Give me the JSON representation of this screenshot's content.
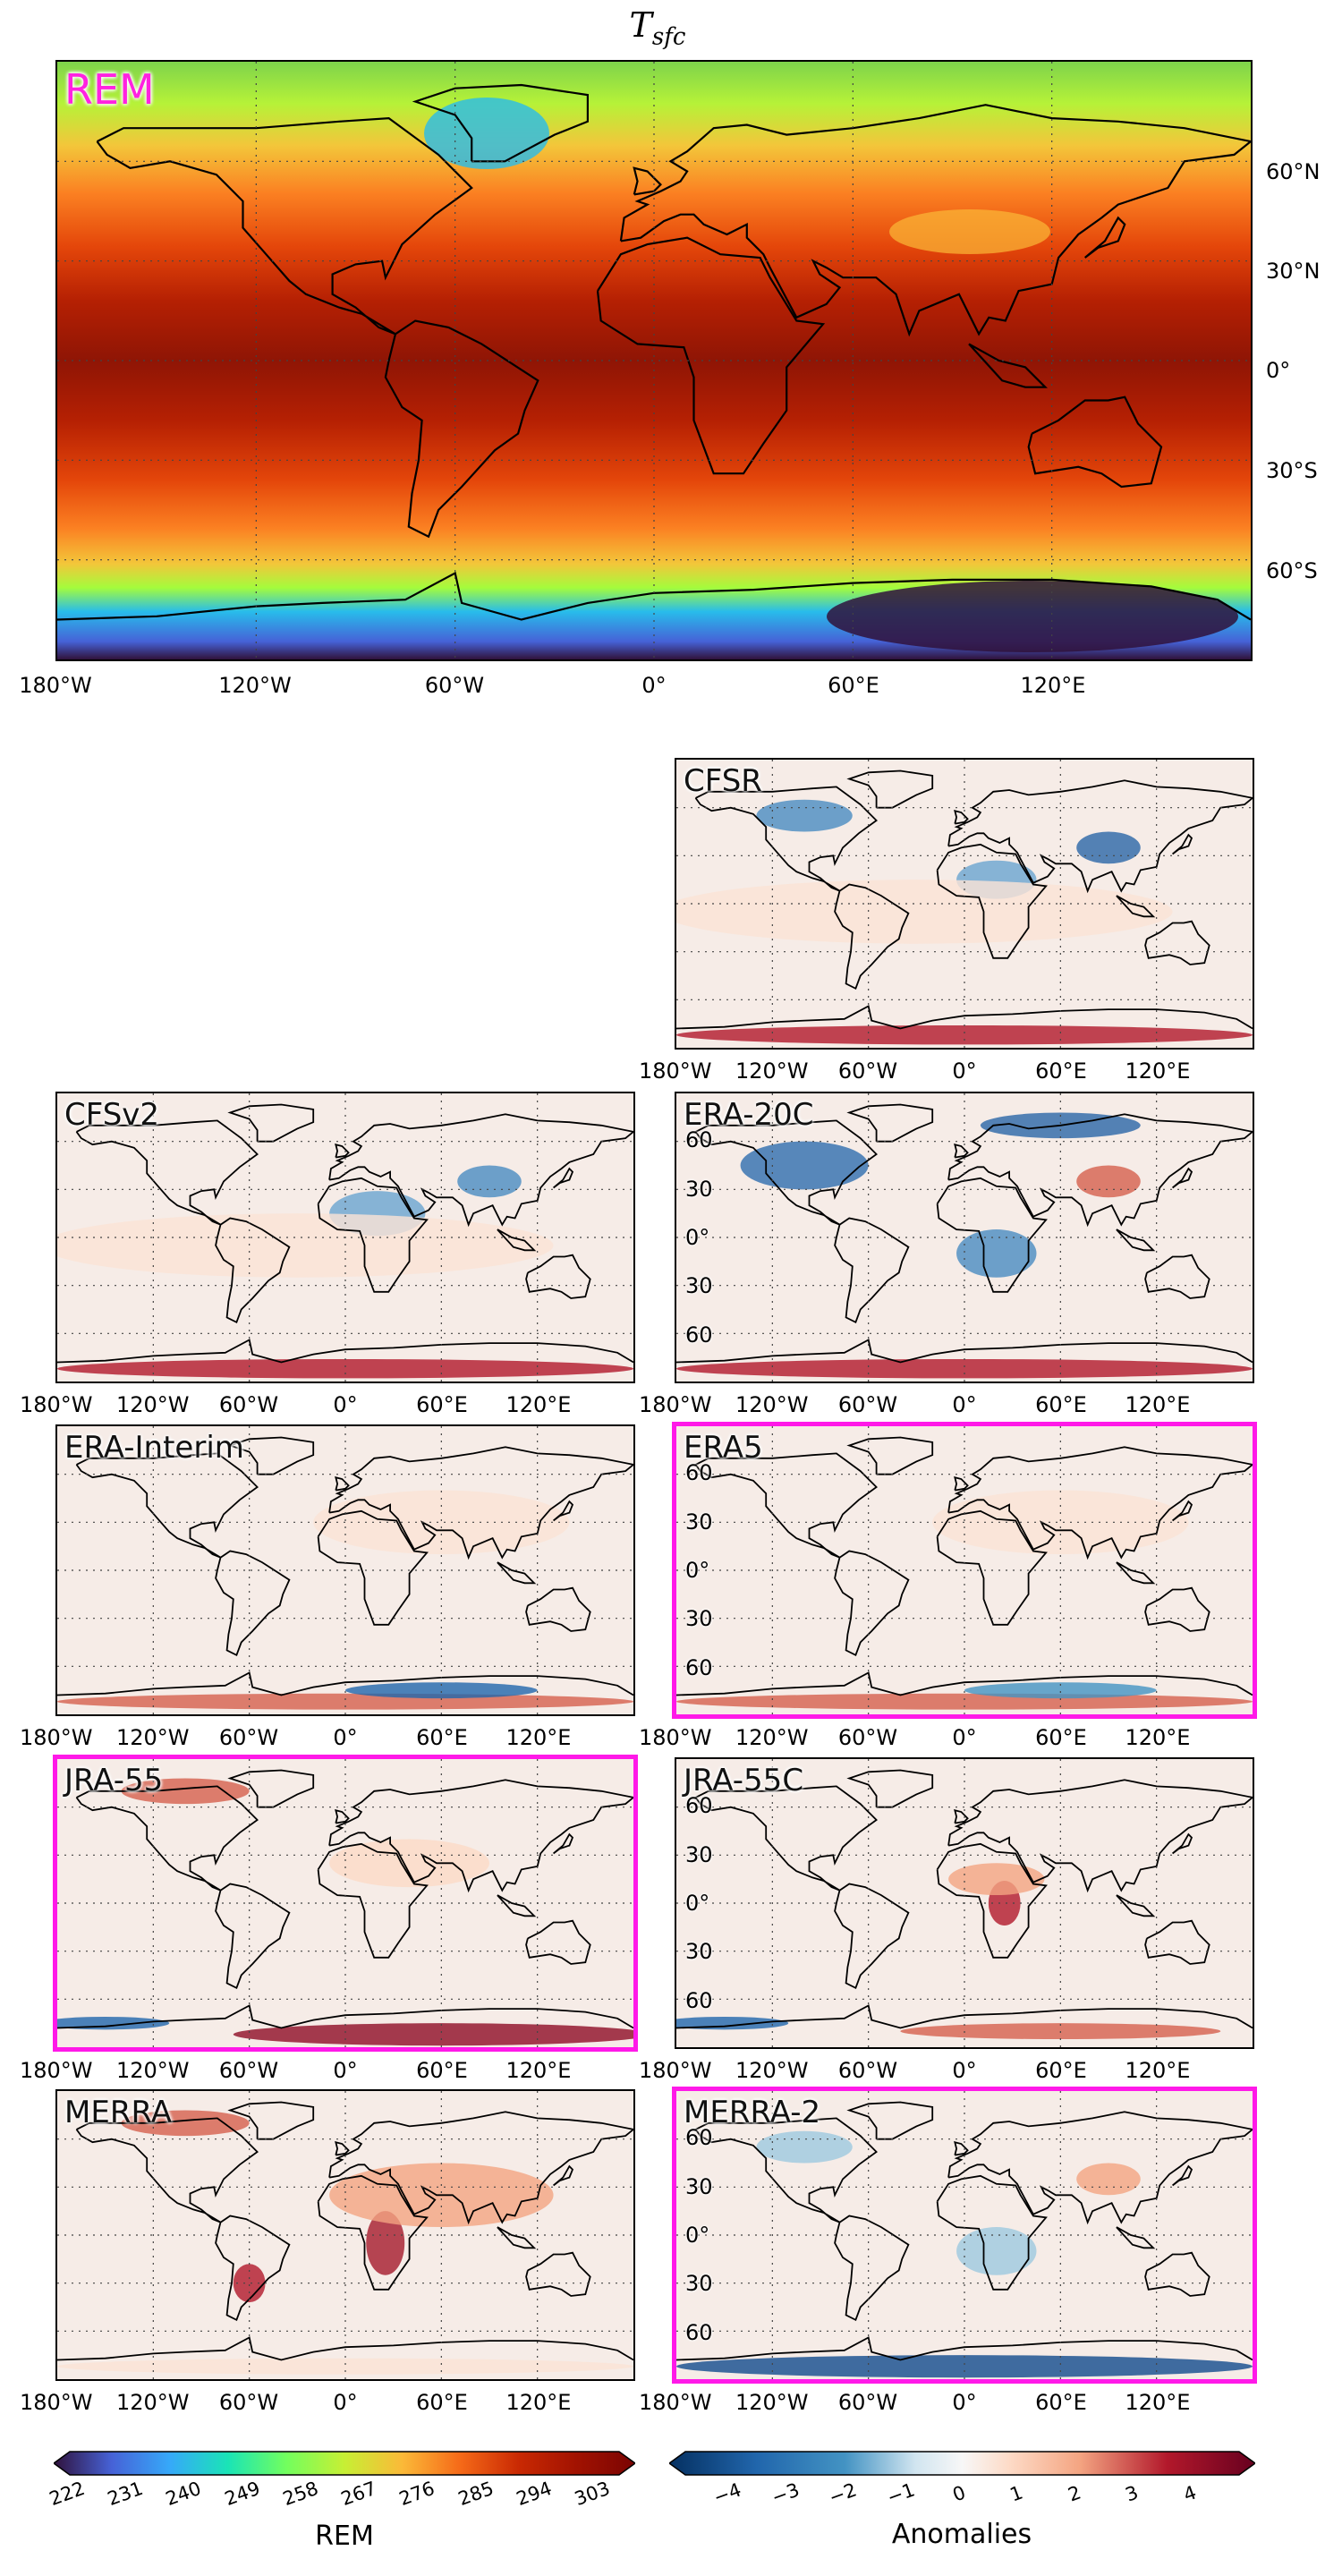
{
  "figure": {
    "title_main": "T",
    "title_sub": "sfc"
  },
  "colors": {
    "highlight": "#ff19e8",
    "rem_label": "#ff22e0"
  },
  "main_map": {
    "label": "REM",
    "lat_labels": [
      "60°N",
      "30°N",
      "0°",
      "30°S",
      "60°S"
    ],
    "lon_labels": [
      "180°W",
      "120°W",
      "60°W",
      "0°",
      "60°E",
      "120°E"
    ]
  },
  "panels": [
    {
      "label": "CFSR",
      "highlighted": false
    },
    {
      "label": "CFSv2",
      "highlighted": false
    },
    {
      "label": "ERA-20C",
      "highlighted": false
    },
    {
      "label": "ERA-Interim",
      "highlighted": false
    },
    {
      "label": "ERA5",
      "highlighted": true
    },
    {
      "label": "JRA-55",
      "highlighted": true
    },
    {
      "label": "JRA-55C",
      "highlighted": false
    },
    {
      "label": "MERRA",
      "highlighted": false
    },
    {
      "label": "MERRA-2",
      "highlighted": true
    }
  ],
  "small_lon_labels": [
    "180°W",
    "120°W",
    "60°W",
    "0°",
    "60°E",
    "120°E"
  ],
  "small_lat_labels": [
    "60",
    "30",
    "0°",
    "30",
    "60"
  ],
  "colorbar_rem": {
    "title": "REM",
    "ticks": [
      "222",
      "231",
      "240",
      "249",
      "258",
      "267",
      "276",
      "285",
      "294",
      "303"
    ],
    "colormap": "turbo"
  },
  "colorbar_anom": {
    "title": "Anomalies",
    "ticks": [
      "−4",
      "−3",
      "−2",
      "−1",
      "0",
      "1",
      "2",
      "3",
      "4"
    ],
    "colormap": "RdBu_r"
  }
}
